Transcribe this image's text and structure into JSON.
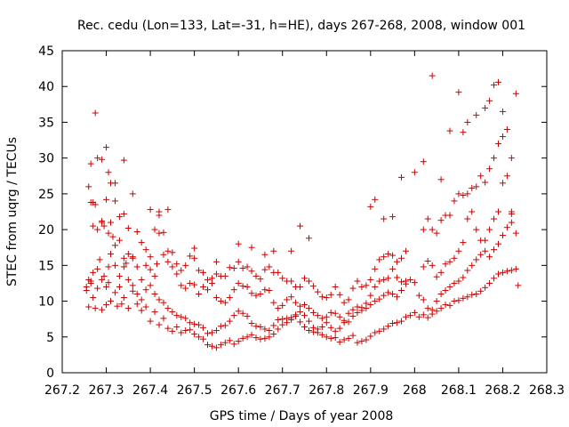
{
  "chart_data": {
    "type": "scatter",
    "title": "Rec. cedu (Lon=133, Lat=-31, h=HE), days 267-268, 2008, window 001",
    "xlabel": "GPS time / Days of year 2008",
    "ylabel": "STEC from uqrg / TECUs",
    "xlim": [
      267.2,
      268.3
    ],
    "ylim": [
      0,
      45
    ],
    "xticks": [
      267.2,
      267.3,
      267.4,
      267.5,
      267.6,
      267.7,
      267.8,
      267.9,
      268,
      268.1,
      268.2,
      268.3
    ],
    "xtick_labels": [
      "267.2",
      "267.3",
      "267.4",
      "267.5",
      "267.6",
      "267.7",
      "267.8",
      "267.9",
      "268",
      "268.1",
      "268.2",
      "268.3"
    ],
    "yticks": [
      0,
      5,
      10,
      15,
      20,
      25,
      30,
      35,
      40,
      45
    ],
    "ytick_labels": [
      "0",
      "5",
      "10",
      "15",
      "20",
      "25",
      "30",
      "35",
      "40",
      "45"
    ],
    "grid": false,
    "marker": "+",
    "color": "#cc0000",
    "series": [
      {
        "comment_free": true,
        "x": [
          267.255,
          267.26,
          267.265,
          267.27,
          267.275,
          267.28,
          267.29,
          267.295,
          267.3,
          267.305,
          267.31,
          267.32,
          267.325,
          267.33,
          267.335,
          267.34,
          267.35,
          267.36,
          267.37,
          267.38,
          267.39,
          267.4,
          267.41,
          267.42,
          267.43,
          267.44,
          267.45,
          267.46,
          267.47,
          267.48,
          267.49,
          267.5,
          267.51,
          267.52,
          267.53,
          267.54,
          267.55,
          267.56,
          267.57,
          267.58,
          267.59,
          267.6,
          267.61,
          267.62,
          267.63,
          267.64,
          267.65,
          267.66,
          267.67,
          267.68,
          267.69,
          267.7,
          267.71,
          267.72,
          267.73,
          267.74,
          267.75,
          267.76,
          267.77,
          267.78,
          267.79,
          267.8,
          267.81,
          267.82,
          267.83,
          267.84,
          267.85,
          267.86,
          267.87,
          267.88,
          267.89,
          267.9,
          267.91,
          267.92,
          267.93,
          267.94,
          267.95,
          267.96,
          267.97,
          267.98,
          267.99,
          268.0,
          268.01,
          268.02,
          268.03,
          268.04,
          268.05,
          268.06,
          268.07,
          268.08,
          268.09,
          268.1,
          268.11,
          268.12,
          268.13,
          268.14,
          268.15,
          268.16,
          268.17,
          268.18,
          268.19,
          268.2,
          268.21,
          268.22,
          268.23,
          268.235
        ],
        "y": [
          11.5,
          9.2,
          12.5,
          14.0,
          9.0,
          11.8,
          8.8,
          13.5,
          9.5,
          12.6,
          10.0,
          11.2,
          9.3,
          12.0,
          9.6,
          10.5,
          9.0,
          11.4,
          9.6,
          8.7,
          9.2,
          7.2,
          8.5,
          6.7,
          7.6,
          6.2,
          5.8,
          6.4,
          5.6,
          5.9,
          6.0,
          5.4,
          5.0,
          4.7,
          3.9,
          3.7,
          3.5,
          3.9,
          4.2,
          4.5,
          4.0,
          4.4,
          4.8,
          5.0,
          5.3,
          4.9,
          4.7,
          4.8,
          5.0,
          5.4,
          6.1,
          6.7,
          7.0,
          7.4,
          7.9,
          7.1,
          6.4,
          5.9,
          5.7,
          5.6,
          5.3,
          5.0,
          4.8,
          4.9,
          4.3,
          4.6,
          4.8,
          5.2,
          4.2,
          4.4,
          4.6,
          5.1,
          5.6,
          5.8,
          6.1,
          6.5,
          6.9,
          7.0,
          7.2,
          7.8,
          8.0,
          8.4,
          7.8,
          8.1,
          7.7,
          8.2,
          8.6,
          9.0,
          9.5,
          9.4,
          10.0,
          10.1,
          10.4,
          10.6,
          10.9,
          11.0,
          11.4,
          11.9,
          12.5,
          13.2,
          13.8,
          14.0,
          14.2,
          14.3,
          14.5,
          12.2
        ]
      },
      {
        "x": [
          267.255,
          267.26,
          267.265,
          267.27,
          267.28,
          267.285,
          267.29,
          267.3,
          267.305,
          267.31,
          267.32,
          267.33,
          267.34,
          267.345,
          267.35,
          267.36,
          267.37,
          267.38,
          267.39,
          267.4,
          267.41,
          267.42,
          267.43,
          267.44,
          267.45,
          267.46,
          267.47,
          267.48,
          267.49,
          267.5,
          267.51,
          267.52,
          267.53,
          267.54,
          267.55,
          267.56,
          267.57,
          267.58,
          267.59,
          267.6,
          267.61,
          267.62,
          267.63,
          267.64,
          267.65,
          267.66,
          267.67,
          267.68,
          267.69,
          267.7,
          267.71,
          267.72,
          267.73,
          267.74,
          267.75,
          267.76,
          267.77,
          267.78,
          267.79,
          267.8,
          267.81,
          267.82,
          267.83,
          267.84,
          267.85,
          267.86,
          267.87,
          267.88,
          267.89,
          267.9,
          267.91,
          267.92,
          267.93,
          267.94,
          267.95,
          267.96,
          267.97,
          267.98,
          267.99,
          268.0,
          268.01,
          268.02,
          268.03,
          268.04,
          268.05,
          268.06,
          268.07,
          268.08,
          268.09,
          268.1,
          268.11,
          268.12,
          268.13,
          268.14,
          268.15,
          268.16,
          268.17,
          268.18,
          268.19,
          268.2,
          268.21,
          268.22,
          268.23
        ],
        "y": [
          12.0,
          13.0,
          12.8,
          10.5,
          14.5,
          15.8,
          13.0,
          12.0,
          14.8,
          16.6,
          15.0,
          13.5,
          14.8,
          15.3,
          13.0,
          12.2,
          11.0,
          10.2,
          11.6,
          12.2,
          11.0,
          10.2,
          9.8,
          9.0,
          8.5,
          8.0,
          7.8,
          7.6,
          7.0,
          6.8,
          6.7,
          6.3,
          5.5,
          5.6,
          5.9,
          6.5,
          6.6,
          7.2,
          8.0,
          8.6,
          8.3,
          7.9,
          6.9,
          6.5,
          6.4,
          6.1,
          5.9,
          6.6,
          7.4,
          7.5,
          7.6,
          7.7,
          8.1,
          8.5,
          8.0,
          7.2,
          6.3,
          6.1,
          6.4,
          7.0,
          6.3,
          5.8,
          6.2,
          7.0,
          8.3,
          8.8,
          9.2,
          8.7,
          9.0,
          9.5,
          10.0,
          10.3,
          10.8,
          11.2,
          11.0,
          10.6,
          11.5,
          12.4,
          13.0,
          12.6,
          10.8,
          10.2,
          9.0,
          8.8,
          10.0,
          11.0,
          11.5,
          12.0,
          12.5,
          12.8,
          13.3,
          14.3,
          15.0,
          15.8,
          16.5,
          17.0,
          16.2,
          17.2,
          18.0,
          19.2,
          20.3,
          21.0,
          19.5
        ]
      },
      {
        "x": [
          267.26,
          267.265,
          267.27,
          267.275,
          267.28,
          267.29,
          267.295,
          267.3,
          267.305,
          267.31,
          267.315,
          267.32,
          267.33,
          267.34,
          267.35,
          267.36,
          267.37,
          267.38,
          267.39,
          267.4,
          267.41,
          267.415,
          267.42,
          267.43,
          267.44,
          267.45,
          267.46,
          267.47,
          267.48,
          267.49,
          267.5,
          267.51,
          267.52,
          267.53,
          267.54,
          267.55,
          267.56,
          267.57,
          267.58,
          267.59,
          267.6,
          267.61,
          267.62,
          267.63,
          267.64,
          267.65,
          267.66,
          267.67,
          267.68,
          267.69,
          267.7,
          267.71,
          267.72,
          267.73,
          267.74,
          267.75,
          267.76,
          267.77,
          267.78,
          267.79,
          267.8,
          267.81,
          267.82,
          267.83,
          267.84,
          267.85,
          267.86,
          267.87,
          267.88,
          267.89,
          267.9,
          267.91,
          267.92,
          267.93,
          267.94,
          267.95,
          267.96,
          267.97,
          267.98,
          268.02,
          268.03,
          268.04,
          268.05,
          268.06,
          268.07,
          268.08,
          268.09,
          268.1,
          268.11,
          268.12,
          268.13,
          268.14,
          268.15,
          268.16,
          268.17,
          268.18,
          268.19,
          268.2,
          268.21,
          268.22
        ],
        "y": [
          26.0,
          23.8,
          20.5,
          23.5,
          20.0,
          21.0,
          20.5,
          24.2,
          19.5,
          21.0,
          19.0,
          17.8,
          18.5,
          16.0,
          16.6,
          16.2,
          14.8,
          13.0,
          15.0,
          14.4,
          13.5,
          15.2,
          19.5,
          16.5,
          15.5,
          14.8,
          13.8,
          12.2,
          11.8,
          12.5,
          12.3,
          11.0,
          12.0,
          11.6,
          12.5,
          10.5,
          10.0,
          9.8,
          10.5,
          11.6,
          12.5,
          12.1,
          12.0,
          11.1,
          10.8,
          11.0,
          11.6,
          11.5,
          9.8,
          9.0,
          9.4,
          10.2,
          10.6,
          9.8,
          9.3,
          9.5,
          9.0,
          8.4,
          8.0,
          7.6,
          7.8,
          8.4,
          8.3,
          7.8,
          7.3,
          7.1,
          7.9,
          8.4,
          9.1,
          9.7,
          10.8,
          12.0,
          12.8,
          13.0,
          13.2,
          14.5,
          13.3,
          12.7,
          12.8,
          14.8,
          15.6,
          15.0,
          13.4,
          14.0,
          15.2,
          15.5,
          16.0,
          17.0,
          18.2,
          21.5,
          22.5,
          20.0,
          18.5,
          18.5,
          20.0,
          21.5,
          22.5,
          26.5,
          27.5,
          22.5
        ]
      },
      {
        "x": [
          267.265,
          267.27,
          267.28,
          267.29,
          267.3,
          267.31,
          267.32,
          267.33,
          267.34,
          267.35,
          267.36,
          267.37,
          267.38,
          267.39,
          267.4,
          267.41,
          267.42,
          267.43,
          267.44,
          267.45,
          267.46,
          267.47,
          267.48,
          267.49,
          267.5,
          267.51,
          267.52,
          267.53,
          267.54,
          267.55,
          267.56,
          267.57,
          267.58,
          267.59,
          267.6,
          267.61,
          267.62,
          267.63,
          267.64,
          267.65,
          267.66,
          267.67,
          267.68,
          267.69,
          267.7,
          267.71,
          267.72,
          267.73,
          267.74,
          267.75,
          267.76,
          267.77,
          267.78,
          267.79,
          267.8,
          267.81,
          267.82,
          267.83,
          267.84,
          267.85,
          267.86,
          267.87,
          267.88,
          267.89,
          267.9,
          267.91,
          267.92,
          267.93,
          267.94,
          267.95,
          267.96,
          267.97,
          267.98,
          268.02,
          268.03,
          268.04,
          268.05,
          268.06,
          268.07,
          268.08,
          268.09,
          268.1,
          268.11,
          268.12,
          268.13,
          268.14,
          268.15,
          268.16,
          268.17,
          268.18,
          268.19,
          268.2,
          268.21,
          268.22
        ],
        "y": [
          29.2,
          23.8,
          30.0,
          21.2,
          31.5,
          26.5,
          24.0,
          21.8,
          22.2,
          20.2,
          16.0,
          19.7,
          18.2,
          17.2,
          16.2,
          20.0,
          22.0,
          19.6,
          17.0,
          16.8,
          15.2,
          14.3,
          15.0,
          16.3,
          16.0,
          14.3,
          14.0,
          13.0,
          13.2,
          13.8,
          13.5,
          13.5,
          14.7,
          14.6,
          15.5,
          14.6,
          14.8,
          14.2,
          13.5,
          13.1,
          14.4,
          14.8,
          14.0,
          14.0,
          13.2,
          12.8,
          12.8,
          12.0,
          12.0,
          13.2,
          12.8,
          12.1,
          11.3,
          10.6,
          10.5,
          10.9,
          12.0,
          10.9,
          9.8,
          10.2,
          11.8,
          12.8,
          12.0,
          12.2,
          13.0,
          14.5,
          15.8,
          16.2,
          16.6,
          16.4,
          15.5,
          16.0,
          17.0,
          20.0,
          21.5,
          20.0,
          19.5,
          21.3,
          22.0,
          22.0,
          24.0,
          25.0,
          24.8,
          25.0,
          25.8,
          26.0,
          27.5,
          26.6,
          28.5,
          30.0,
          32.0,
          33.0,
          34.0,
          30.0
        ]
      },
      {
        "x": [
          267.275,
          267.29,
          267.305,
          267.32,
          267.34,
          267.36,
          267.4,
          267.42,
          267.44,
          267.5,
          267.55,
          267.6,
          267.63,
          267.66,
          267.68,
          267.72,
          267.74,
          267.76,
          267.9,
          267.91,
          267.93,
          267.95,
          267.97,
          268.0,
          268.02,
          268.04,
          268.06,
          268.08,
          268.1,
          268.11,
          268.12,
          268.14,
          268.16,
          268.17,
          268.18,
          268.19,
          268.2,
          268.22,
          268.23
        ],
        "y": [
          36.3,
          29.8,
          28.0,
          26.5,
          29.7,
          25.0,
          22.8,
          22.5,
          22.8,
          17.4,
          15.5,
          18.0,
          17.5,
          16.5,
          17.0,
          17.0,
          20.5,
          18.8,
          23.2,
          24.2,
          21.5,
          21.8,
          27.3,
          28.0,
          29.5,
          41.5,
          27.0,
          33.8,
          39.2,
          33.6,
          35.0,
          36.0,
          37.0,
          38.0,
          40.2,
          40.6,
          36.5,
          22.2,
          39.0
        ]
      }
    ]
  }
}
